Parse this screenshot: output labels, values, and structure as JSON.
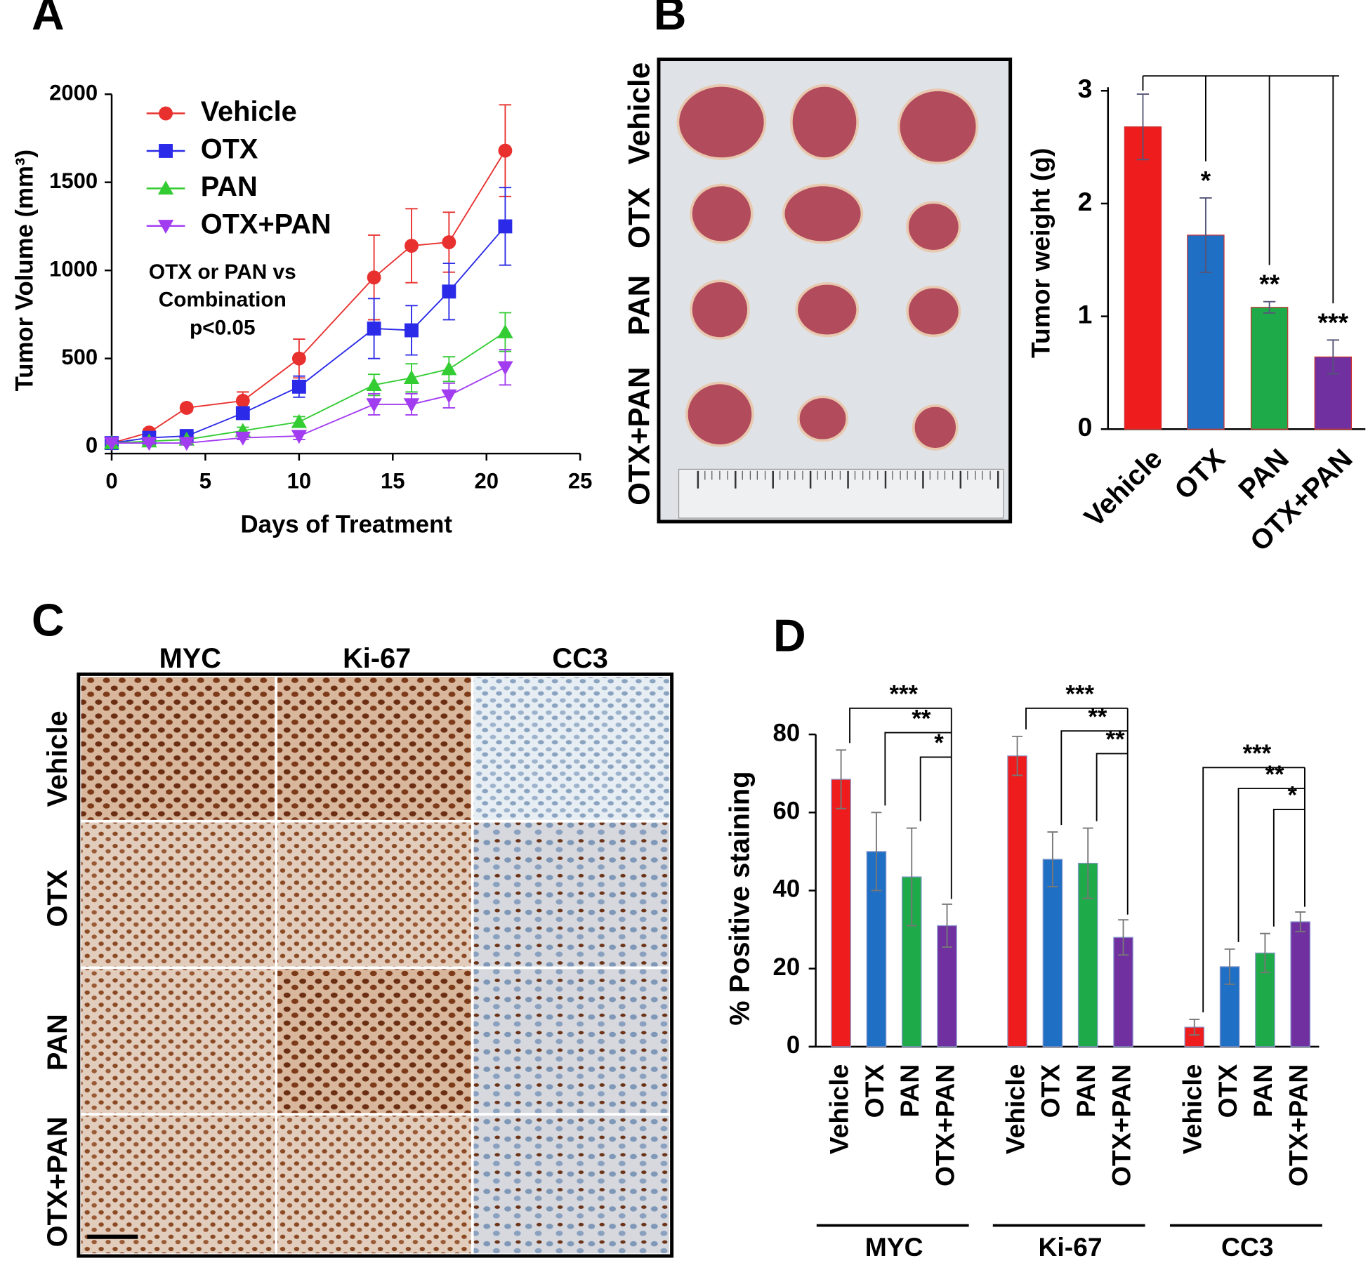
{
  "panel_labels": [
    "A",
    "B",
    "C",
    "D"
  ],
  "photo_b": {
    "row_labels": [
      "Vehicle",
      "OTX",
      "PAN",
      "OTX+PAN"
    ]
  },
  "photo_c": {
    "column_labels": [
      "MYC",
      "Ki-67",
      "CC3"
    ],
    "row_labels": [
      "Vehicle",
      "OTX",
      "PAN",
      "OTX+PAN"
    ]
  },
  "chart_data": [
    {
      "type": "line",
      "x": [
        0,
        2,
        4,
        7,
        10,
        14,
        16,
        18,
        21
      ],
      "series": [
        {
          "name": "Vehicle",
          "color": "#e8312f",
          "marker": "circle",
          "values": [
            20,
            80,
            220,
            260,
            500,
            960,
            1140,
            1160,
            1680
          ],
          "errors": [
            10,
            20,
            20,
            50,
            110,
            240,
            210,
            170,
            260
          ]
        },
        {
          "name": "OTX",
          "color": "#2a2ae8",
          "marker": "square",
          "values": [
            20,
            50,
            60,
            190,
            340,
            670,
            660,
            880,
            1250
          ],
          "errors": [
            10,
            15,
            20,
            30,
            60,
            170,
            140,
            160,
            220
          ]
        },
        {
          "name": "PAN",
          "color": "#33cc33",
          "marker": "triangle-up",
          "values": [
            20,
            30,
            40,
            90,
            140,
            350,
            390,
            440,
            650
          ],
          "errors": [
            5,
            10,
            10,
            20,
            30,
            60,
            80,
            70,
            110
          ]
        },
        {
          "name": "OTX+PAN",
          "color": "#a23cf0",
          "marker": "triangle-down",
          "values": [
            20,
            20,
            20,
            50,
            60,
            240,
            240,
            290,
            450
          ],
          "errors": [
            5,
            5,
            10,
            10,
            20,
            60,
            60,
            70,
            100
          ]
        }
      ],
      "xlim": [
        0,
        25
      ],
      "xticks": [
        0,
        5,
        10,
        15,
        20,
        25
      ],
      "ylim": [
        0,
        2000
      ],
      "yticks": [
        0,
        500,
        1000,
        1500,
        2000
      ],
      "xlabel": "Days of Treatment",
      "ylabel": "Tumor Volume (mm³)",
      "annotation": [
        "OTX or PAN vs",
        "Combination",
        "p<0.05"
      ]
    },
    {
      "type": "bar",
      "categories": [
        "Vehicle",
        "OTX",
        "PAN",
        "OTX+PAN"
      ],
      "values": [
        2.68,
        1.72,
        1.08,
        0.64
      ],
      "errors": [
        0.29,
        0.33,
        0.05,
        0.15
      ],
      "colors": [
        "#ee1c1c",
        "#1f6fc4",
        "#1faa4a",
        "#7030a0"
      ],
      "significance": [
        "*",
        "**",
        "***"
      ],
      "ylim": [
        0,
        3
      ],
      "yticks": [
        0,
        1,
        2,
        3
      ],
      "ylabel": "Tumor weight (g)"
    },
    {
      "type": "grouped_bar",
      "categories": [
        "MYC",
        "Ki-67",
        "CC3"
      ],
      "series": [
        {
          "name": "Vehicle",
          "color": "#ee1c1c",
          "values": [
            68.5,
            74.5,
            5
          ],
          "errors": [
            7.5,
            5,
            2
          ]
        },
        {
          "name": "OTX",
          "color": "#1f6fc4",
          "values": [
            50,
            48,
            20.5
          ],
          "errors": [
            10,
            7,
            4.5
          ]
        },
        {
          "name": "PAN",
          "color": "#1faa4a",
          "values": [
            43.5,
            47,
            24
          ],
          "errors": [
            12.5,
            9,
            5
          ]
        },
        {
          "name": "OTX+PAN",
          "color": "#7030a0",
          "values": [
            31,
            28,
            32
          ],
          "errors": [
            5.5,
            4.5,
            2.5
          ]
        }
      ],
      "significance": [
        [
          "***",
          "**",
          "*"
        ],
        [
          "***",
          "**",
          "**"
        ],
        [
          "***",
          "**",
          "*"
        ]
      ],
      "ylim": [
        0,
        80
      ],
      "yticks": [
        0,
        20,
        40,
        60,
        80
      ],
      "ylabel": "% Positive staining"
    }
  ]
}
